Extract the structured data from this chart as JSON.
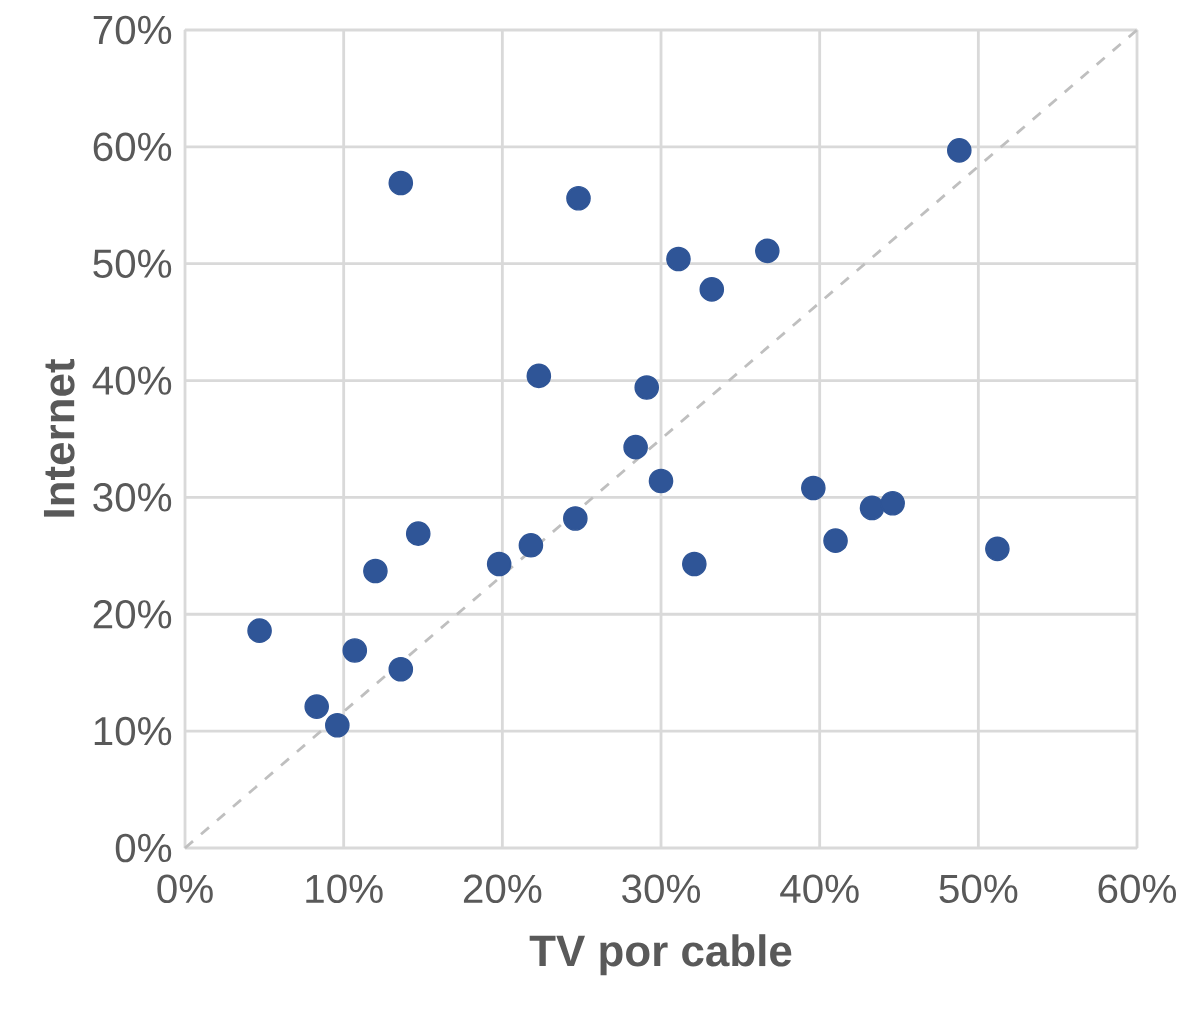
{
  "chart_data": {
    "type": "scatter",
    "xlabel": "TV por cable",
    "ylabel": "Internet",
    "xlim": [
      0,
      60
    ],
    "ylim": [
      0,
      70
    ],
    "xticks": [
      {
        "value": 0,
        "label": "0%"
      },
      {
        "value": 10,
        "label": "10%"
      },
      {
        "value": 20,
        "label": "20%"
      },
      {
        "value": 30,
        "label": "30%"
      },
      {
        "value": 40,
        "label": "40%"
      },
      {
        "value": 50,
        "label": "50%"
      },
      {
        "value": 60,
        "label": "60%"
      }
    ],
    "yticks": [
      {
        "value": 0,
        "label": "0%"
      },
      {
        "value": 10,
        "label": "10%"
      },
      {
        "value": 20,
        "label": "20%"
      },
      {
        "value": 30,
        "label": "30%"
      },
      {
        "value": 40,
        "label": "40%"
      },
      {
        "value": 50,
        "label": "50%"
      },
      {
        "value": 60,
        "label": "60%"
      },
      {
        "value": 70,
        "label": "70%"
      }
    ],
    "grid": true,
    "series": [
      {
        "type": "scatter",
        "marker": "circle",
        "color": "#2f5597",
        "x": [
          4.7,
          8.3,
          9.6,
          10.7,
          12.0,
          13.6,
          13.6,
          14.7,
          19.8,
          21.8,
          22.3,
          24.6,
          24.8,
          28.4,
          29.1,
          30.0,
          31.1,
          32.1,
          33.2,
          36.7,
          39.6,
          41.0,
          43.3,
          44.6,
          48.8,
          51.2
        ],
        "values": [
          18.6,
          12.1,
          10.5,
          16.9,
          23.7,
          56.9,
          15.3,
          26.9,
          24.3,
          25.9,
          40.4,
          28.2,
          55.6,
          34.3,
          39.4,
          31.4,
          50.4,
          24.3,
          47.8,
          51.1,
          30.8,
          26.3,
          29.1,
          29.5,
          59.7,
          25.6
        ]
      },
      {
        "type": "line",
        "color": "#bfbfbf",
        "line_style": "dashed",
        "x": [
          0,
          60
        ],
        "values": [
          0,
          70
        ]
      }
    ]
  }
}
